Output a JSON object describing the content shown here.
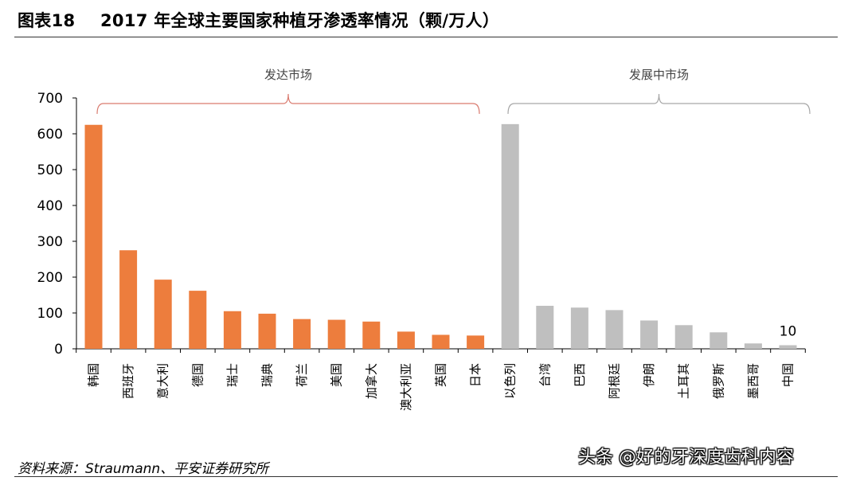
{
  "header": {
    "figure_label": "图表18",
    "title": "2017 年全球主要国家种植牙渗透率情况（颗/万人）"
  },
  "source": "资料来源：Straumann、平安证券研究所",
  "watermark": "头条 @好的牙深度齿科内容",
  "colors": {
    "developed": "#ed7d3d",
    "developing": "#bfbfbf",
    "brace_developed": "#d97a6e",
    "brace_developing": "#a6a6a6"
  },
  "chart_data": {
    "type": "bar",
    "title": "2017 年全球主要国家种植牙渗透率情况（颗/万人）",
    "xlabel": "",
    "ylabel": "",
    "ylim": [
      0,
      700
    ],
    "yticks": [
      0,
      100,
      200,
      300,
      400,
      500,
      600,
      700
    ],
    "grid": false,
    "groups": [
      {
        "name": "发达市场",
        "color_key": "developed",
        "categories": [
          "韩国",
          "西班牙",
          "意大利",
          "德国",
          "瑞士",
          "瑞典",
          "荷兰",
          "美国",
          "加拿大",
          "澳大利亚",
          "英国",
          "日本"
        ]
      },
      {
        "name": "发展中市场",
        "color_key": "developing",
        "categories": [
          "以色列",
          "台湾",
          "巴西",
          "阿根廷",
          "伊朗",
          "土耳其",
          "俄罗斯",
          "墨西哥",
          "中国"
        ]
      }
    ],
    "categories": [
      "韩国",
      "西班牙",
      "意大利",
      "德国",
      "瑞士",
      "瑞典",
      "荷兰",
      "美国",
      "加拿大",
      "澳大利亚",
      "英国",
      "日本",
      "以色列",
      "台湾",
      "巴西",
      "阿根廷",
      "伊朗",
      "土耳其",
      "俄罗斯",
      "墨西哥",
      "中国"
    ],
    "values": [
      625,
      275,
      193,
      162,
      105,
      98,
      83,
      81,
      76,
      48,
      39,
      37,
      627,
      120,
      115,
      108,
      79,
      66,
      46,
      15,
      10
    ],
    "data_labels": [
      {
        "category": "中国",
        "text": "10"
      }
    ]
  }
}
